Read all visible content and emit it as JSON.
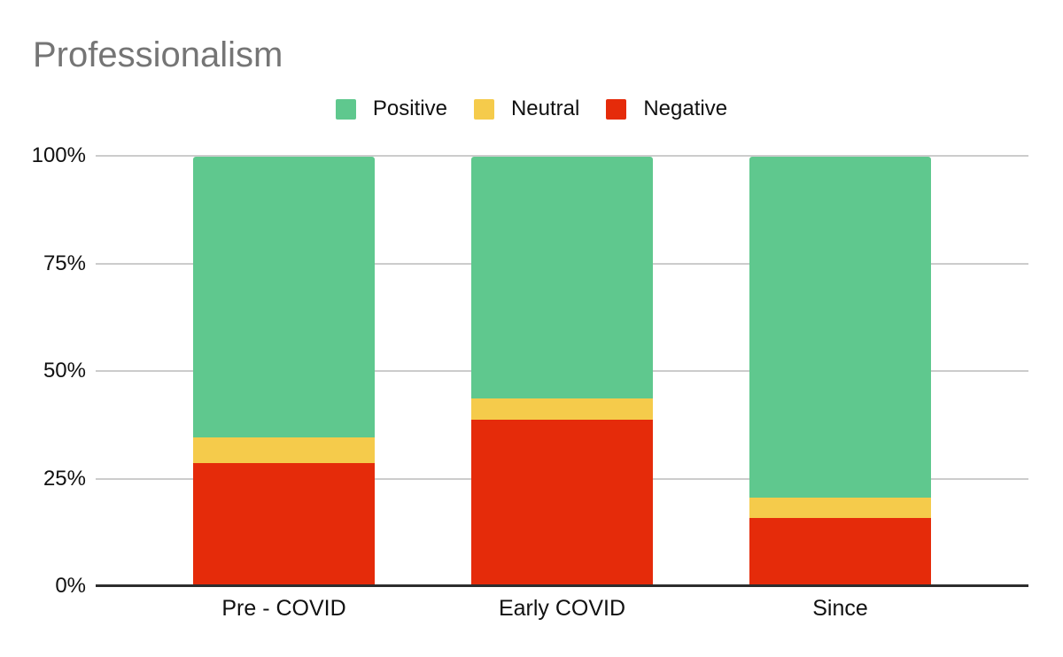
{
  "chart_data": {
    "type": "bar",
    "stacked": true,
    "percent_stacked": true,
    "title": "Professionalism",
    "title_color": "#757575",
    "background": "#ffffff",
    "categories": [
      "Pre - COVID",
      "Early COVID",
      "Since"
    ],
    "series": [
      {
        "name": "Positive",
        "color": "#5fc88e",
        "values": [
          65.4,
          56.2,
          79.4
        ]
      },
      {
        "name": "Neutral",
        "color": "#f5cb4b",
        "values": [
          6.0,
          5.1,
          4.7
        ]
      },
      {
        "name": "Negative",
        "color": "#e52b0a",
        "values": [
          28.6,
          38.7,
          15.9
        ]
      }
    ],
    "xlabel": "",
    "ylabel": "",
    "ylim": [
      0,
      100
    ],
    "y_ticks": [
      "100%",
      "75%",
      "50%",
      "25%",
      "0%"
    ],
    "grid": true,
    "gridline_color": "#cccccc",
    "axis_color": "#2d2d2d",
    "label_color": "#111111",
    "legend_position": "top"
  }
}
